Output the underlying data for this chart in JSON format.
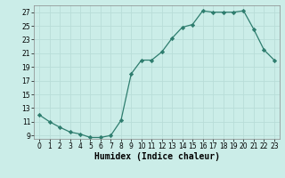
{
  "x": [
    0,
    1,
    2,
    3,
    4,
    5,
    6,
    7,
    8,
    9,
    10,
    11,
    12,
    13,
    14,
    15,
    16,
    17,
    18,
    19,
    20,
    21,
    22,
    23
  ],
  "y": [
    12,
    11,
    10.2,
    9.5,
    9.2,
    8.7,
    8.7,
    9.0,
    11.2,
    18,
    20,
    20,
    21.2,
    23.2,
    24.8,
    25.2,
    27.2,
    27,
    27,
    27,
    27.2,
    24.5,
    21.5,
    20
  ],
  "line_color": "#2e7d6e",
  "marker": "D",
  "marker_size": 2.2,
  "bg_color": "#cbede8",
  "grid_color": "#b8ddd8",
  "xlabel": "Humidex (Indice chaleur)",
  "xlim": [
    -0.5,
    23.5
  ],
  "ylim": [
    8.5,
    28
  ],
  "yticks": [
    9,
    11,
    13,
    15,
    17,
    19,
    21,
    23,
    25,
    27
  ],
  "xticks": [
    0,
    1,
    2,
    3,
    4,
    5,
    6,
    7,
    8,
    9,
    10,
    11,
    12,
    13,
    14,
    15,
    16,
    17,
    18,
    19,
    20,
    21,
    22,
    23
  ],
  "tick_labelsize": 5.5,
  "xlabel_fontsize": 7.0,
  "linewidth": 0.9
}
